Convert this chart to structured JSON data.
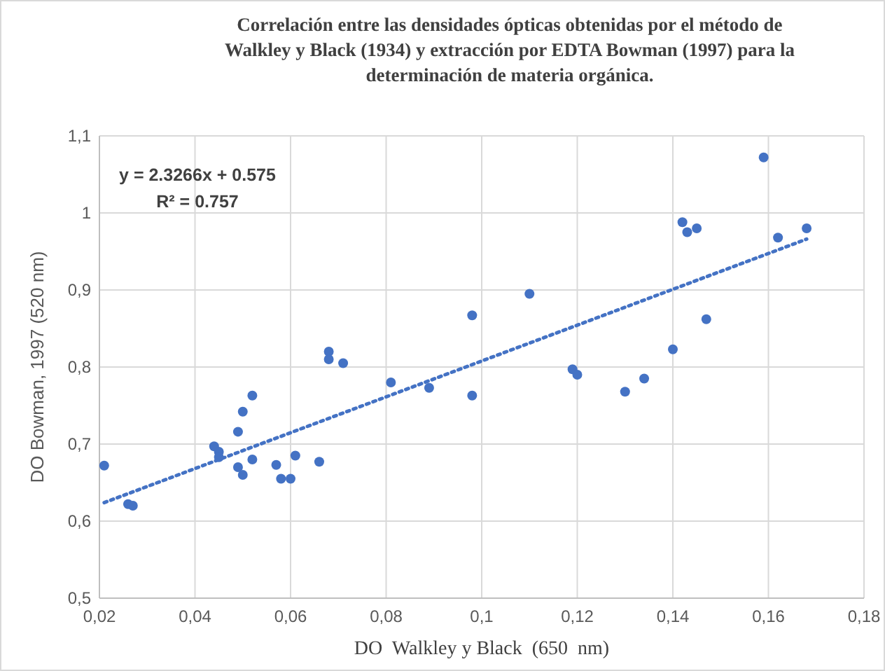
{
  "chart_data": {
    "type": "scatter",
    "title": "Correlación entre las densidades ópticas obtenidas por el método de Walkley y Black (1934)  y extracción por EDTA Bowman (1997)  para la determinación de materia orgánica.",
    "xlabel": "DO  Walkley y Black  (650  nm)",
    "ylabel": "DO Bowman, 1997 (520 nm)",
    "annotations": [
      "y = 2.3266x + 0.575",
      "R² = 0.757"
    ],
    "xlim": [
      0.02,
      0.18
    ],
    "xticks": [
      {
        "value": 0.02,
        "label": "0,02"
      },
      {
        "value": 0.04,
        "label": "0,04"
      },
      {
        "value": 0.06,
        "label": "0,06"
      },
      {
        "value": 0.08,
        "label": "0,08"
      },
      {
        "value": 0.1,
        "label": "0,1"
      },
      {
        "value": 0.12,
        "label": "0,12"
      },
      {
        "value": 0.14,
        "label": "0,14"
      },
      {
        "value": 0.16,
        "label": "0,16"
      },
      {
        "value": 0.18,
        "label": "0,18"
      }
    ],
    "ylim": [
      0.5,
      1.1
    ],
    "yticks": [
      {
        "value": 0.5,
        "label": "0,5"
      },
      {
        "value": 0.6,
        "label": "0,6"
      },
      {
        "value": 0.7,
        "label": "0,7"
      },
      {
        "value": 0.8,
        "label": "0,8"
      },
      {
        "value": 0.9,
        "label": "0,9"
      },
      1,
      {
        "value": 1.1,
        "label": "1,1"
      }
    ],
    "grid": true,
    "series": [
      {
        "color": "#4472c4",
        "marker": "circle",
        "x": [
          0.021,
          0.026,
          0.027,
          0.044,
          0.045,
          0.045,
          0.049,
          0.049,
          0.05,
          0.05,
          0.052,
          0.052,
          0.057,
          0.058,
          0.06,
          0.061,
          0.066,
          0.068,
          0.068,
          0.071,
          0.081,
          0.089,
          0.098,
          0.098,
          0.11,
          0.119,
          0.12,
          0.13,
          0.134,
          0.14,
          0.142,
          0.143,
          0.145,
          0.147,
          0.159,
          0.162,
          0.168
        ],
        "values": [
          0.672,
          0.622,
          0.62,
          0.697,
          0.69,
          0.683,
          0.67,
          0.716,
          0.742,
          0.66,
          0.763,
          0.68,
          0.673,
          0.655,
          0.655,
          0.685,
          0.677,
          0.82,
          0.81,
          0.805,
          0.78,
          0.773,
          0.867,
          0.763,
          0.895,
          0.797,
          0.79,
          0.768,
          0.785,
          0.823,
          0.988,
          0.975,
          0.98,
          0.862,
          1.072,
          0.968,
          0.98
        ]
      },
      {
        "type": "line",
        "color": "#4472c4",
        "line_style": "dotted",
        "x": [
          0.021,
          0.168
        ],
        "values": [
          0.624,
          0.966
        ]
      }
    ]
  }
}
